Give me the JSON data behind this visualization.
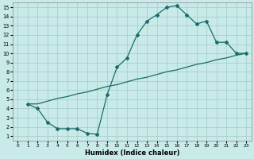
{
  "xlabel": "Humidex (Indice chaleur)",
  "bg_color": "#c8eae8",
  "grid_color": "#a8d0cc",
  "line_color": "#1a6b6b",
  "xlim": [
    -0.5,
    23.5
  ],
  "ylim": [
    0.5,
    15.5
  ],
  "xticks": [
    0,
    1,
    2,
    3,
    4,
    5,
    6,
    7,
    8,
    9,
    10,
    11,
    12,
    13,
    14,
    15,
    16,
    17,
    18,
    19,
    20,
    21,
    22,
    23
  ],
  "yticks": [
    1,
    2,
    3,
    4,
    5,
    6,
    7,
    8,
    9,
    10,
    11,
    12,
    13,
    14,
    15
  ],
  "upper_x": [
    1,
    2,
    3,
    4,
    5,
    6,
    7,
    8,
    9,
    10,
    11,
    12,
    13,
    14,
    15,
    16,
    17,
    18,
    19,
    20,
    21,
    22,
    23
  ],
  "upper_y": [
    4.5,
    4.0,
    2.5,
    1.8,
    1.8,
    1.8,
    1.3,
    1.2,
    5.5,
    8.5,
    9.5,
    12.0,
    13.5,
    14.2,
    15.0,
    15.2,
    14.2,
    13.2,
    13.5,
    11.2,
    11.2,
    10.0,
    10.0
  ],
  "lower_x": [
    1,
    2,
    3,
    4,
    5,
    6,
    7,
    8,
    9,
    10,
    11,
    12,
    13,
    14,
    15,
    16,
    17,
    18,
    19,
    20,
    21,
    22,
    23
  ],
  "lower_y": [
    4.5,
    4.5,
    4.8,
    5.1,
    5.3,
    5.6,
    5.8,
    6.1,
    6.4,
    6.6,
    6.9,
    7.2,
    7.4,
    7.7,
    8.0,
    8.2,
    8.5,
    8.8,
    9.0,
    9.3,
    9.5,
    9.8,
    10.0
  ]
}
